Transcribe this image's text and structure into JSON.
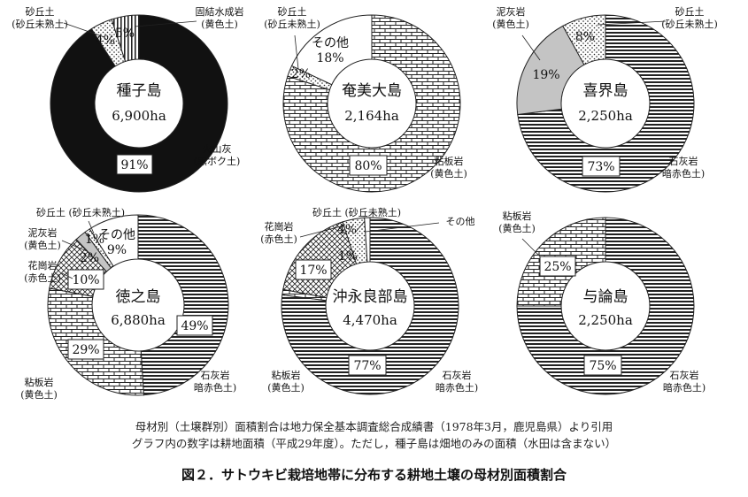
{
  "notes": {
    "line1": "母材別（土壌群別）面積割合は地力保全基本調査総合成績書（1978年3月，鹿児島県）より引用",
    "line2": "グラフ内の数字は耕地面積（平成29年度）。ただし，種子島は畑地のみの面積（水田は含まない）"
  },
  "caption": "図２．サトウキビ栽培地帯に分布する耕地土壌の母材別面積割合",
  "chart_data": [
    {
      "type": "pie",
      "center_title": "種子島",
      "center_subtitle": "6,900ha",
      "slices": [
        {
          "label": "火山灰\n(黒ボク土)",
          "value": 91,
          "value_text": "91%",
          "pattern": "black"
        },
        {
          "label": "砂丘土\n(砂丘未熟土)",
          "value": 4,
          "value_text": "4%",
          "pattern": "dots"
        },
        {
          "label": "固結水成岩\n(黄色土)",
          "value": 5,
          "value_text": "5%",
          "pattern": "vlines"
        }
      ]
    },
    {
      "type": "pie",
      "center_title": "奄美大島",
      "center_subtitle": "2,164ha",
      "slices": [
        {
          "label": "粘板岩\n(黄色土)",
          "value": 80,
          "value_text": "80%",
          "pattern": "bricks"
        },
        {
          "label": "砂丘土\n(砂丘未熟土)",
          "value": 2,
          "value_text": "2%",
          "pattern": "dots"
        },
        {
          "label": "",
          "value": 18,
          "value_text": "その他\n18%",
          "pattern": "white"
        }
      ]
    },
    {
      "type": "pie",
      "center_title": "喜界島",
      "center_subtitle": "2,250ha",
      "slices": [
        {
          "label": "石灰岩\n暗赤色土)",
          "value": 73,
          "value_text": "73%",
          "pattern": "hlines"
        },
        {
          "label": "泥灰岩\n(黄色土)",
          "value": 19,
          "value_text": "19%",
          "pattern": "gray"
        },
        {
          "label": "砂丘土\n(砂丘未熟土)",
          "value": 8,
          "value_text": "8%",
          "pattern": "dots"
        }
      ]
    },
    {
      "type": "pie",
      "center_title": "徳之島",
      "center_subtitle": "6,880ha",
      "slices": [
        {
          "label": "石灰岩\n暗赤色土)",
          "value": 49,
          "value_text": "49%",
          "pattern": "hlines"
        },
        {
          "label": "粘板岩\n(黄色土)",
          "value": 29,
          "value_text": "29%",
          "pattern": "bricks"
        },
        {
          "label": "花崗岩\n(赤色土)",
          "value": 10,
          "value_text": "10%",
          "pattern": "cross"
        },
        {
          "label": "泥灰岩\n(黄色土)",
          "value": 2,
          "value_text": "2%",
          "pattern": "gray"
        },
        {
          "label": "砂丘土 (砂丘未熟土)",
          "value": 1,
          "value_text": "1%",
          "pattern": "dots"
        },
        {
          "label": "",
          "value": 9,
          "value_text": "その他\n9%",
          "pattern": "white"
        }
      ]
    },
    {
      "type": "pie",
      "center_title": "沖永良部島",
      "center_subtitle": "4,470ha",
      "slices": [
        {
          "label": "石灰岩\n暗赤色土)",
          "value": 77,
          "value_text": "77%",
          "pattern": "hlines"
        },
        {
          "label": "粘板岩\n(黄色土)",
          "value": 1,
          "value_text": "1%",
          "pattern": "bricks"
        },
        {
          "label": "花崗岩\n(赤色土)",
          "value": 17,
          "value_text": "17%",
          "pattern": "cross"
        },
        {
          "label": "砂丘土 (砂丘未熟土)",
          "value": 4,
          "value_text": "4%",
          "pattern": "dots"
        },
        {
          "label": "その他",
          "value": 1,
          "value_text": "",
          "pattern": "white"
        }
      ]
    },
    {
      "type": "pie",
      "center_title": "与論島",
      "center_subtitle": "2,250ha",
      "slices": [
        {
          "label": "石灰岩\n暗赤色土)",
          "value": 75,
          "value_text": "75%",
          "pattern": "hlines"
        },
        {
          "label": "粘板岩\n(黄色土)",
          "value": 25,
          "value_text": "25%",
          "pattern": "bricks"
        }
      ]
    }
  ]
}
